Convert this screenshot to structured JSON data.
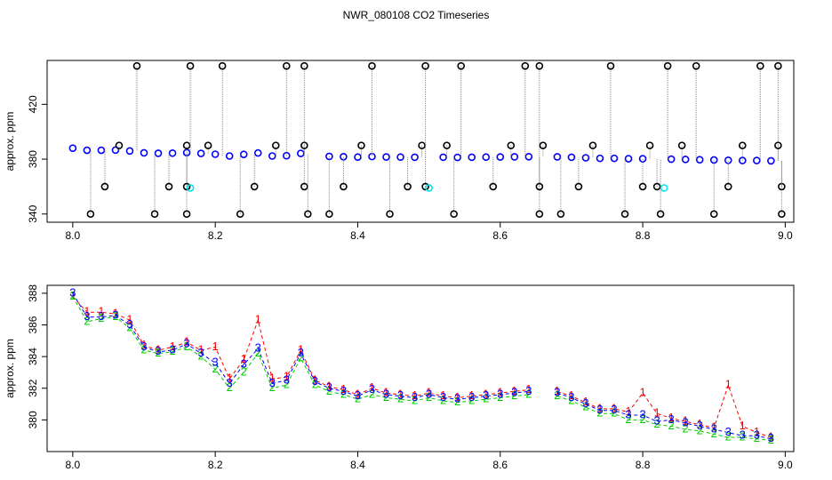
{
  "chart_data": [
    {
      "type": "scatter",
      "title": "NWR_080108  CO2 Timeseries",
      "y_label": "approx. ppm",
      "x": [
        8.0,
        8.02,
        8.04,
        8.06,
        8.08,
        8.1,
        8.12,
        8.14,
        8.16,
        8.18,
        8.2,
        8.22,
        8.24,
        8.26,
        8.28,
        8.3,
        8.32,
        8.34,
        8.36,
        8.38,
        8.4,
        8.42,
        8.44,
        8.46,
        8.48,
        8.5,
        8.52,
        8.54,
        8.56,
        8.58,
        8.6,
        8.62,
        8.64,
        8.66,
        8.68,
        8.7,
        8.72,
        8.74,
        8.76,
        8.78,
        8.8,
        8.82,
        8.84,
        8.86,
        8.88,
        8.9,
        8.92,
        8.94,
        8.96,
        8.98
      ],
      "xlim": [
        7.964,
        9.012
      ],
      "xticks": [
        {
          "value": 8,
          "label": "8.0"
        },
        {
          "value": 8.2,
          "label": "8.2"
        },
        {
          "value": 8.4,
          "label": "8.4"
        },
        {
          "value": 8.6,
          "label": "8.6"
        },
        {
          "value": 8.8,
          "label": "8.8"
        },
        {
          "value": 9,
          "label": "9.0"
        }
      ],
      "ylim": [
        334,
        452
      ],
      "yticks": [
        340,
        380,
        420
      ],
      "series": [
        {
          "color": "#0000ff",
          "marker": "circle",
          "values": [
            388,
            386.5,
            386.5,
            386.6,
            386.0,
            384.6,
            384.3,
            384.4,
            384.8,
            384.2,
            383.6,
            382.3,
            383.5,
            384.5,
            382.3,
            382.5,
            384.2,
            null,
            382.0,
            381.8,
            381.5,
            381.9,
            381.6,
            381.5,
            381.4,
            null,
            381.4,
            381.3,
            381.4,
            381.5,
            381.6,
            381.7,
            381.8,
            null,
            381.7,
            381.4,
            381.0,
            380.6,
            380.6,
            380.3,
            380.3,
            null,
            380.0,
            379.8,
            379.6,
            379.4,
            379.2,
            379.0,
            379.0,
            378.8
          ]
        },
        {
          "color": "#000000",
          "marker": "circle",
          "stems": true,
          "x": [
            8.025,
            8.045,
            8.065,
            8.09,
            8.115,
            8.135,
            8.16,
            8.16,
            8.16,
            8.165,
            8.19,
            8.21,
            8.235,
            8.255,
            8.285,
            8.3,
            8.325,
            8.325,
            8.325,
            8.33,
            8.36,
            8.38,
            8.405,
            8.42,
            8.445,
            8.47,
            8.49,
            8.495,
            8.495,
            8.525,
            8.535,
            8.545,
            8.59,
            8.615,
            8.635,
            8.655,
            8.655,
            8.655,
            8.66,
            8.685,
            8.71,
            8.73,
            8.755,
            8.775,
            8.8,
            8.81,
            8.82,
            8.825,
            8.835,
            8.855,
            8.875,
            8.9,
            8.92,
            8.94,
            8.965,
            8.99,
            8.99,
            8.995,
            8.995
          ],
          "values": [
            340,
            360,
            390,
            448,
            340,
            360,
            340,
            360,
            390,
            448,
            390,
            448,
            340,
            360,
            390,
            448,
            448,
            360,
            390,
            340,
            340,
            360,
            390,
            448,
            340,
            360,
            390,
            448,
            360,
            390,
            340,
            448,
            360,
            390,
            448,
            448,
            340,
            360,
            390,
            340,
            360,
            390,
            448,
            340,
            360,
            390,
            360,
            340,
            448,
            390,
            448,
            340,
            360,
            390,
            448,
            448,
            390,
            360,
            340
          ]
        },
        {
          "color": "#00e5ee",
          "marker": "circle",
          "x": [
            8.165,
            8.5,
            8.83
          ],
          "values": [
            359,
            359,
            359
          ]
        }
      ]
    },
    {
      "type": "scatter",
      "y_label": "approx. ppm",
      "x": [
        8.0,
        8.02,
        8.04,
        8.06,
        8.08,
        8.1,
        8.12,
        8.14,
        8.16,
        8.18,
        8.2,
        8.22,
        8.24,
        8.26,
        8.28,
        8.3,
        8.32,
        8.34,
        8.36,
        8.38,
        8.4,
        8.42,
        8.44,
        8.46,
        8.48,
        8.5,
        8.52,
        8.54,
        8.56,
        8.58,
        8.6,
        8.62,
        8.64,
        8.66,
        8.68,
        8.7,
        8.72,
        8.74,
        8.76,
        8.78,
        8.8,
        8.82,
        8.84,
        8.86,
        8.88,
        8.9,
        8.92,
        8.94,
        8.96,
        8.98
      ],
      "xlim": [
        7.964,
        9.012
      ],
      "xticks": [
        {
          "value": 8,
          "label": "8.0"
        },
        {
          "value": 8.2,
          "label": "8.2"
        },
        {
          "value": 8.4,
          "label": "8.4"
        },
        {
          "value": 8.6,
          "label": "8.6"
        },
        {
          "value": 8.8,
          "label": "8.8"
        },
        {
          "value": 9,
          "label": "9.0"
        }
      ],
      "ylim": [
        378,
        388.5
      ],
      "yticks": [
        380,
        382,
        384,
        386,
        388
      ],
      "series": [
        {
          "color": "#ff0000",
          "marker": "1",
          "line": "dashed",
          "values": [
            387.8,
            386.8,
            386.8,
            386.7,
            386.3,
            384.7,
            384.4,
            384.6,
            384.9,
            384.4,
            384.6,
            382.6,
            383.8,
            386.3,
            382.6,
            382.7,
            384.4,
            382.5,
            382.1,
            381.9,
            381.6,
            382.0,
            381.7,
            381.6,
            381.5,
            381.7,
            381.5,
            381.4,
            381.5,
            381.6,
            381.7,
            381.8,
            381.9,
            null,
            381.8,
            381.5,
            381.1,
            380.7,
            380.7,
            380.5,
            381.7,
            380.4,
            380.1,
            379.9,
            379.7,
            379.5,
            382.2,
            379.6,
            379.2,
            378.9
          ]
        },
        {
          "color": "#00cd00",
          "marker": "2",
          "line": "dashed",
          "values": [
            387.8,
            386.2,
            386.4,
            386.5,
            385.8,
            384.4,
            384.2,
            384.3,
            384.6,
            384.0,
            383.2,
            382.0,
            383.0,
            384.2,
            382.0,
            382.2,
            383.9,
            382.2,
            381.8,
            381.6,
            381.3,
            381.6,
            381.4,
            381.3,
            381.2,
            381.4,
            381.2,
            381.1,
            381.2,
            381.3,
            381.4,
            381.5,
            381.6,
            null,
            381.5,
            381.2,
            380.8,
            380.4,
            380.4,
            380.0,
            380.0,
            379.7,
            379.6,
            379.4,
            379.3,
            379.1,
            378.9,
            378.9,
            378.8,
            378.7
          ]
        },
        {
          "color": "#0000ff",
          "marker": "3",
          "line": "dashed",
          "values": [
            388,
            386.5,
            386.5,
            386.6,
            386.0,
            384.6,
            384.3,
            384.4,
            384.8,
            384.2,
            383.6,
            382.3,
            383.5,
            384.5,
            382.3,
            382.5,
            384.2,
            382.4,
            382.0,
            381.8,
            381.5,
            381.9,
            381.6,
            381.5,
            381.4,
            381.6,
            381.4,
            381.3,
            381.4,
            381.5,
            381.6,
            381.7,
            381.8,
            null,
            381.7,
            381.4,
            381.0,
            380.6,
            380.6,
            380.3,
            380.3,
            379.9,
            380.0,
            379.8,
            379.6,
            379.4,
            379.2,
            379.0,
            379.0,
            378.8
          ]
        }
      ]
    }
  ]
}
